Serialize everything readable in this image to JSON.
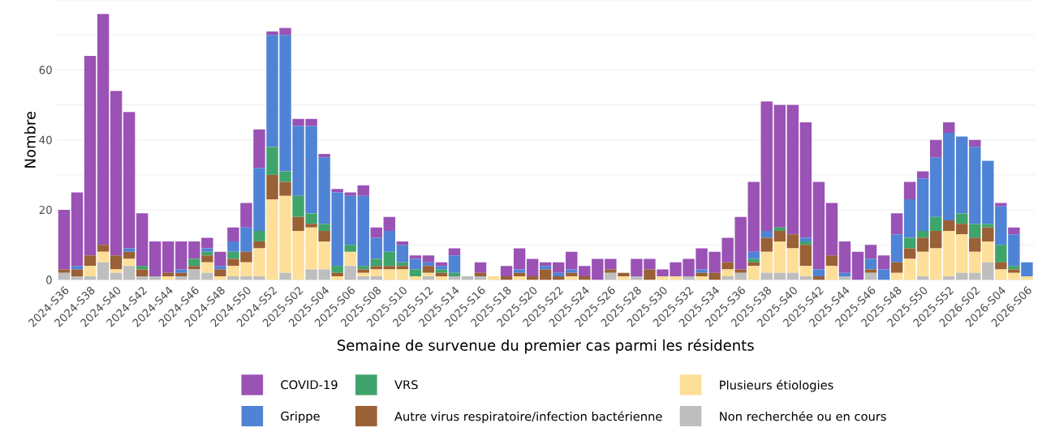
{
  "chart_data": {
    "type": "bar",
    "stacked": true,
    "xlabel": "Semaine de survenue du premier cas parmi les résidents",
    "ylabel": "Nombre",
    "categories": [
      "2024-S36",
      null,
      "2024-S38",
      null,
      "2024-S40",
      null,
      "2024-S42",
      null,
      "2024-S44",
      null,
      "2024-S46",
      null,
      "2024-S48",
      null,
      "2024-S50",
      null,
      "2024-S52",
      null,
      "2025-S02",
      null,
      "2025-S04",
      null,
      "2025-S06",
      null,
      "2025-S08",
      null,
      "2025-S10",
      null,
      "2025-S12",
      null,
      "2025-S14",
      null,
      "2025-S16",
      null,
      "2025-S18",
      null,
      "2025-S20",
      null,
      "2025-S22",
      null,
      "2025-S24",
      null,
      "2025-S26",
      null,
      "2025-S28",
      null,
      "2025-S30",
      null,
      "2025-S32",
      null,
      "2025-S34",
      null,
      "2025-S36",
      null,
      "2025-S38",
      null,
      "2025-S40",
      null,
      "2025-S42",
      null,
      "2025-S44",
      null,
      "2025-S46",
      null,
      "2025-S48",
      null,
      "2025-S50",
      null,
      "2025-S52",
      null,
      "2026-S02",
      null,
      "2026-S04",
      null,
      "2026-S06"
    ],
    "series": [
      {
        "name": "Non recherchée ou en cours",
        "color": "#bebebe",
        "values": [
          2,
          1,
          1,
          5,
          2,
          4,
          1,
          1,
          0,
          1,
          3,
          2,
          0,
          1,
          1,
          1,
          0,
          2,
          0,
          3,
          3,
          0,
          4,
          1,
          1,
          0,
          0,
          0,
          1,
          0,
          1,
          1,
          1,
          0,
          0,
          0,
          0,
          0,
          0,
          0,
          0,
          0,
          2,
          0,
          1,
          0,
          0,
          0,
          1,
          0,
          0,
          1,
          2,
          0,
          2,
          2,
          2,
          1,
          0,
          0,
          1,
          0,
          2,
          0,
          0,
          0,
          1,
          0,
          1,
          2,
          2,
          5,
          0,
          0,
          0
        ]
      },
      {
        "name": "Plusieurs étiologies",
        "color": "#fedf99",
        "values": [
          0,
          0,
          3,
          3,
          1,
          2,
          0,
          0,
          1,
          0,
          0,
          3,
          1,
          3,
          4,
          8,
          23,
          22,
          14,
          12,
          8,
          1,
          4,
          1,
          2,
          3,
          3,
          1,
          1,
          1,
          0,
          0,
          0,
          1,
          0,
          1,
          0,
          0,
          0,
          1,
          0,
          0,
          0,
          1,
          0,
          0,
          1,
          1,
          0,
          1,
          0,
          2,
          0,
          4,
          6,
          9,
          7,
          3,
          0,
          4,
          0,
          0,
          0,
          0,
          2,
          6,
          7,
          9,
          13,
          11,
          6,
          6,
          3,
          2,
          1
        ]
      },
      {
        "name": "Autre virus respiratoire/infection bactérienne",
        "color": "#9a6036",
        "values": [
          1,
          2,
          3,
          2,
          4,
          2,
          2,
          0,
          1,
          1,
          1,
          2,
          2,
          2,
          3,
          2,
          7,
          4,
          4,
          1,
          3,
          1,
          0,
          1,
          1,
          1,
          1,
          0,
          2,
          1,
          0,
          0,
          1,
          0,
          1,
          1,
          1,
          3,
          1,
          1,
          1,
          0,
          1,
          1,
          0,
          3,
          0,
          0,
          0,
          1,
          2,
          2,
          1,
          1,
          4,
          3,
          4,
          6,
          1,
          3,
          0,
          0,
          1,
          0,
          3,
          3,
          4,
          5,
          3,
          3,
          4,
          4,
          2,
          1,
          0
        ]
      },
      {
        "name": "VRS",
        "color": "#3fa46b",
        "values": [
          0,
          0,
          0,
          0,
          0,
          0,
          1,
          0,
          0,
          0,
          2,
          1,
          0,
          2,
          0,
          3,
          8,
          3,
          6,
          3,
          2,
          2,
          2,
          1,
          2,
          4,
          1,
          2,
          0,
          1,
          1,
          0,
          0,
          0,
          0,
          0,
          0,
          0,
          0,
          0,
          0,
          0,
          0,
          0,
          0,
          0,
          0,
          0,
          0,
          0,
          0,
          0,
          0,
          1,
          0,
          1,
          0,
          1,
          0,
          0,
          0,
          0,
          0,
          0,
          0,
          3,
          2,
          4,
          0,
          3,
          4,
          1,
          5,
          1,
          0
        ]
      },
      {
        "name": "Grippe",
        "color": "#4f83d6",
        "values": [
          0,
          1,
          0,
          0,
          0,
          1,
          0,
          0,
          0,
          1,
          0,
          1,
          1,
          3,
          7,
          18,
          32,
          39,
          20,
          25,
          19,
          21,
          14,
          20,
          6,
          6,
          5,
          3,
          1,
          1,
          5,
          0,
          0,
          0,
          0,
          1,
          0,
          1,
          1,
          1,
          0,
          0,
          0,
          0,
          0,
          0,
          0,
          0,
          0,
          1,
          0,
          0,
          0,
          2,
          2,
          0,
          0,
          1,
          2,
          0,
          1,
          0,
          3,
          3,
          8,
          11,
          15,
          17,
          25,
          22,
          22,
          18,
          11,
          9,
          4
        ]
      },
      {
        "name": "COVID-19",
        "color": "#9a52b5",
        "values": [
          17,
          21,
          57,
          66,
          47,
          39,
          15,
          10,
          9,
          8,
          5,
          3,
          4,
          4,
          7,
          11,
          1,
          2,
          2,
          2,
          1,
          1,
          1,
          3,
          3,
          4,
          1,
          1,
          2,
          1,
          2,
          0,
          3,
          0,
          3,
          6,
          5,
          1,
          3,
          5,
          3,
          6,
          3,
          0,
          5,
          3,
          2,
          4,
          5,
          6,
          6,
          7,
          15,
          20,
          37,
          35,
          37,
          33,
          25,
          15,
          9,
          8,
          4,
          4,
          6,
          5,
          2,
          5,
          3,
          0,
          2,
          0,
          1,
          2,
          0
        ]
      }
    ],
    "ylim": [
      0,
      80
    ],
    "yticks": [
      0,
      {
        "value": 10,
        "label": null
      },
      20,
      {
        "value": 30,
        "label": null
      },
      40,
      {
        "value": 50,
        "label": null
      },
      60,
      {
        "value": 70,
        "label": null
      },
      {
        "value": 80,
        "label": null
      }
    ],
    "grid": "y",
    "legend": "bottom"
  }
}
